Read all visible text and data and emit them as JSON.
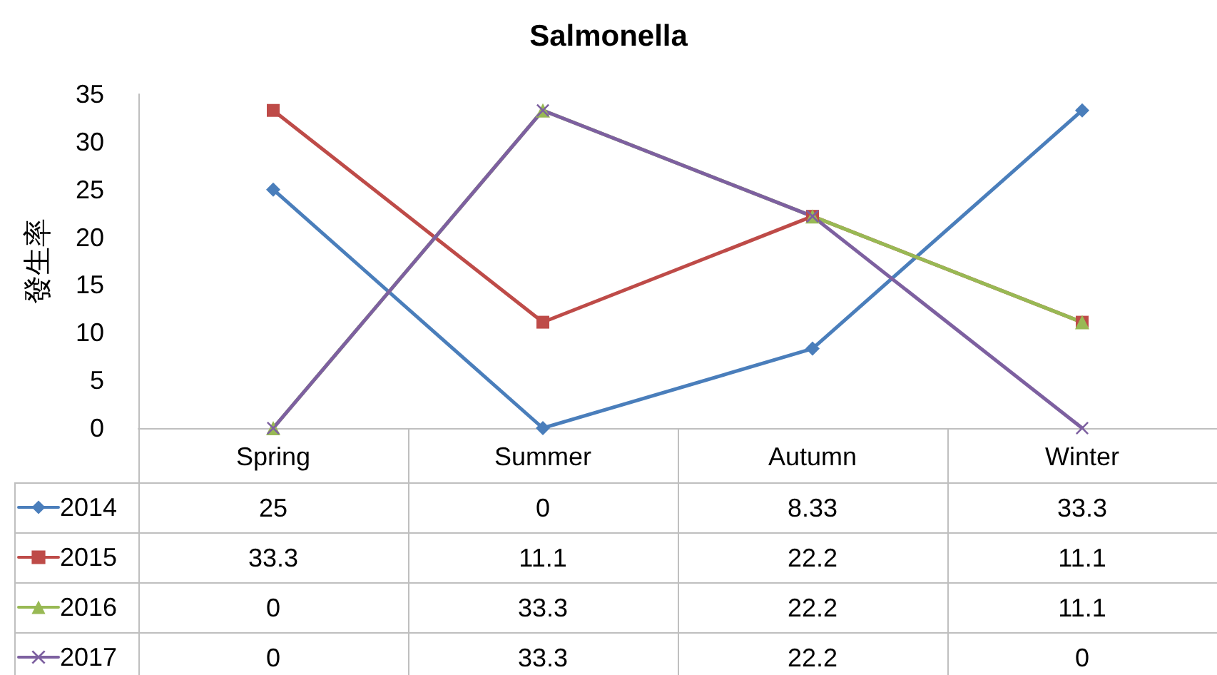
{
  "chart_data": {
    "type": "line",
    "title": "Salmonella",
    "ylabel": "發生率",
    "categories": [
      "Spring",
      "Summer",
      "Autumn",
      "Winter"
    ],
    "series": [
      {
        "name": "2014",
        "color": "#4a7ebb",
        "marker": "diamond",
        "values": [
          25,
          0,
          8.33,
          33.3
        ]
      },
      {
        "name": "2015",
        "color": "#be4b48",
        "marker": "square",
        "values": [
          33.3,
          11.1,
          22.2,
          11.1
        ]
      },
      {
        "name": "2016",
        "color": "#98b954",
        "marker": "triangle",
        "values": [
          0,
          33.3,
          22.2,
          11.1
        ]
      },
      {
        "name": "2017",
        "color": "#7d60a0",
        "marker": "cross",
        "values": [
          0,
          33.3,
          22.2,
          0
        ]
      }
    ],
    "ylim": [
      0,
      35
    ],
    "yticks": [
      0,
      5,
      10,
      15,
      20,
      25,
      30,
      35
    ],
    "legend": "bottom left",
    "data_labels": true
  }
}
